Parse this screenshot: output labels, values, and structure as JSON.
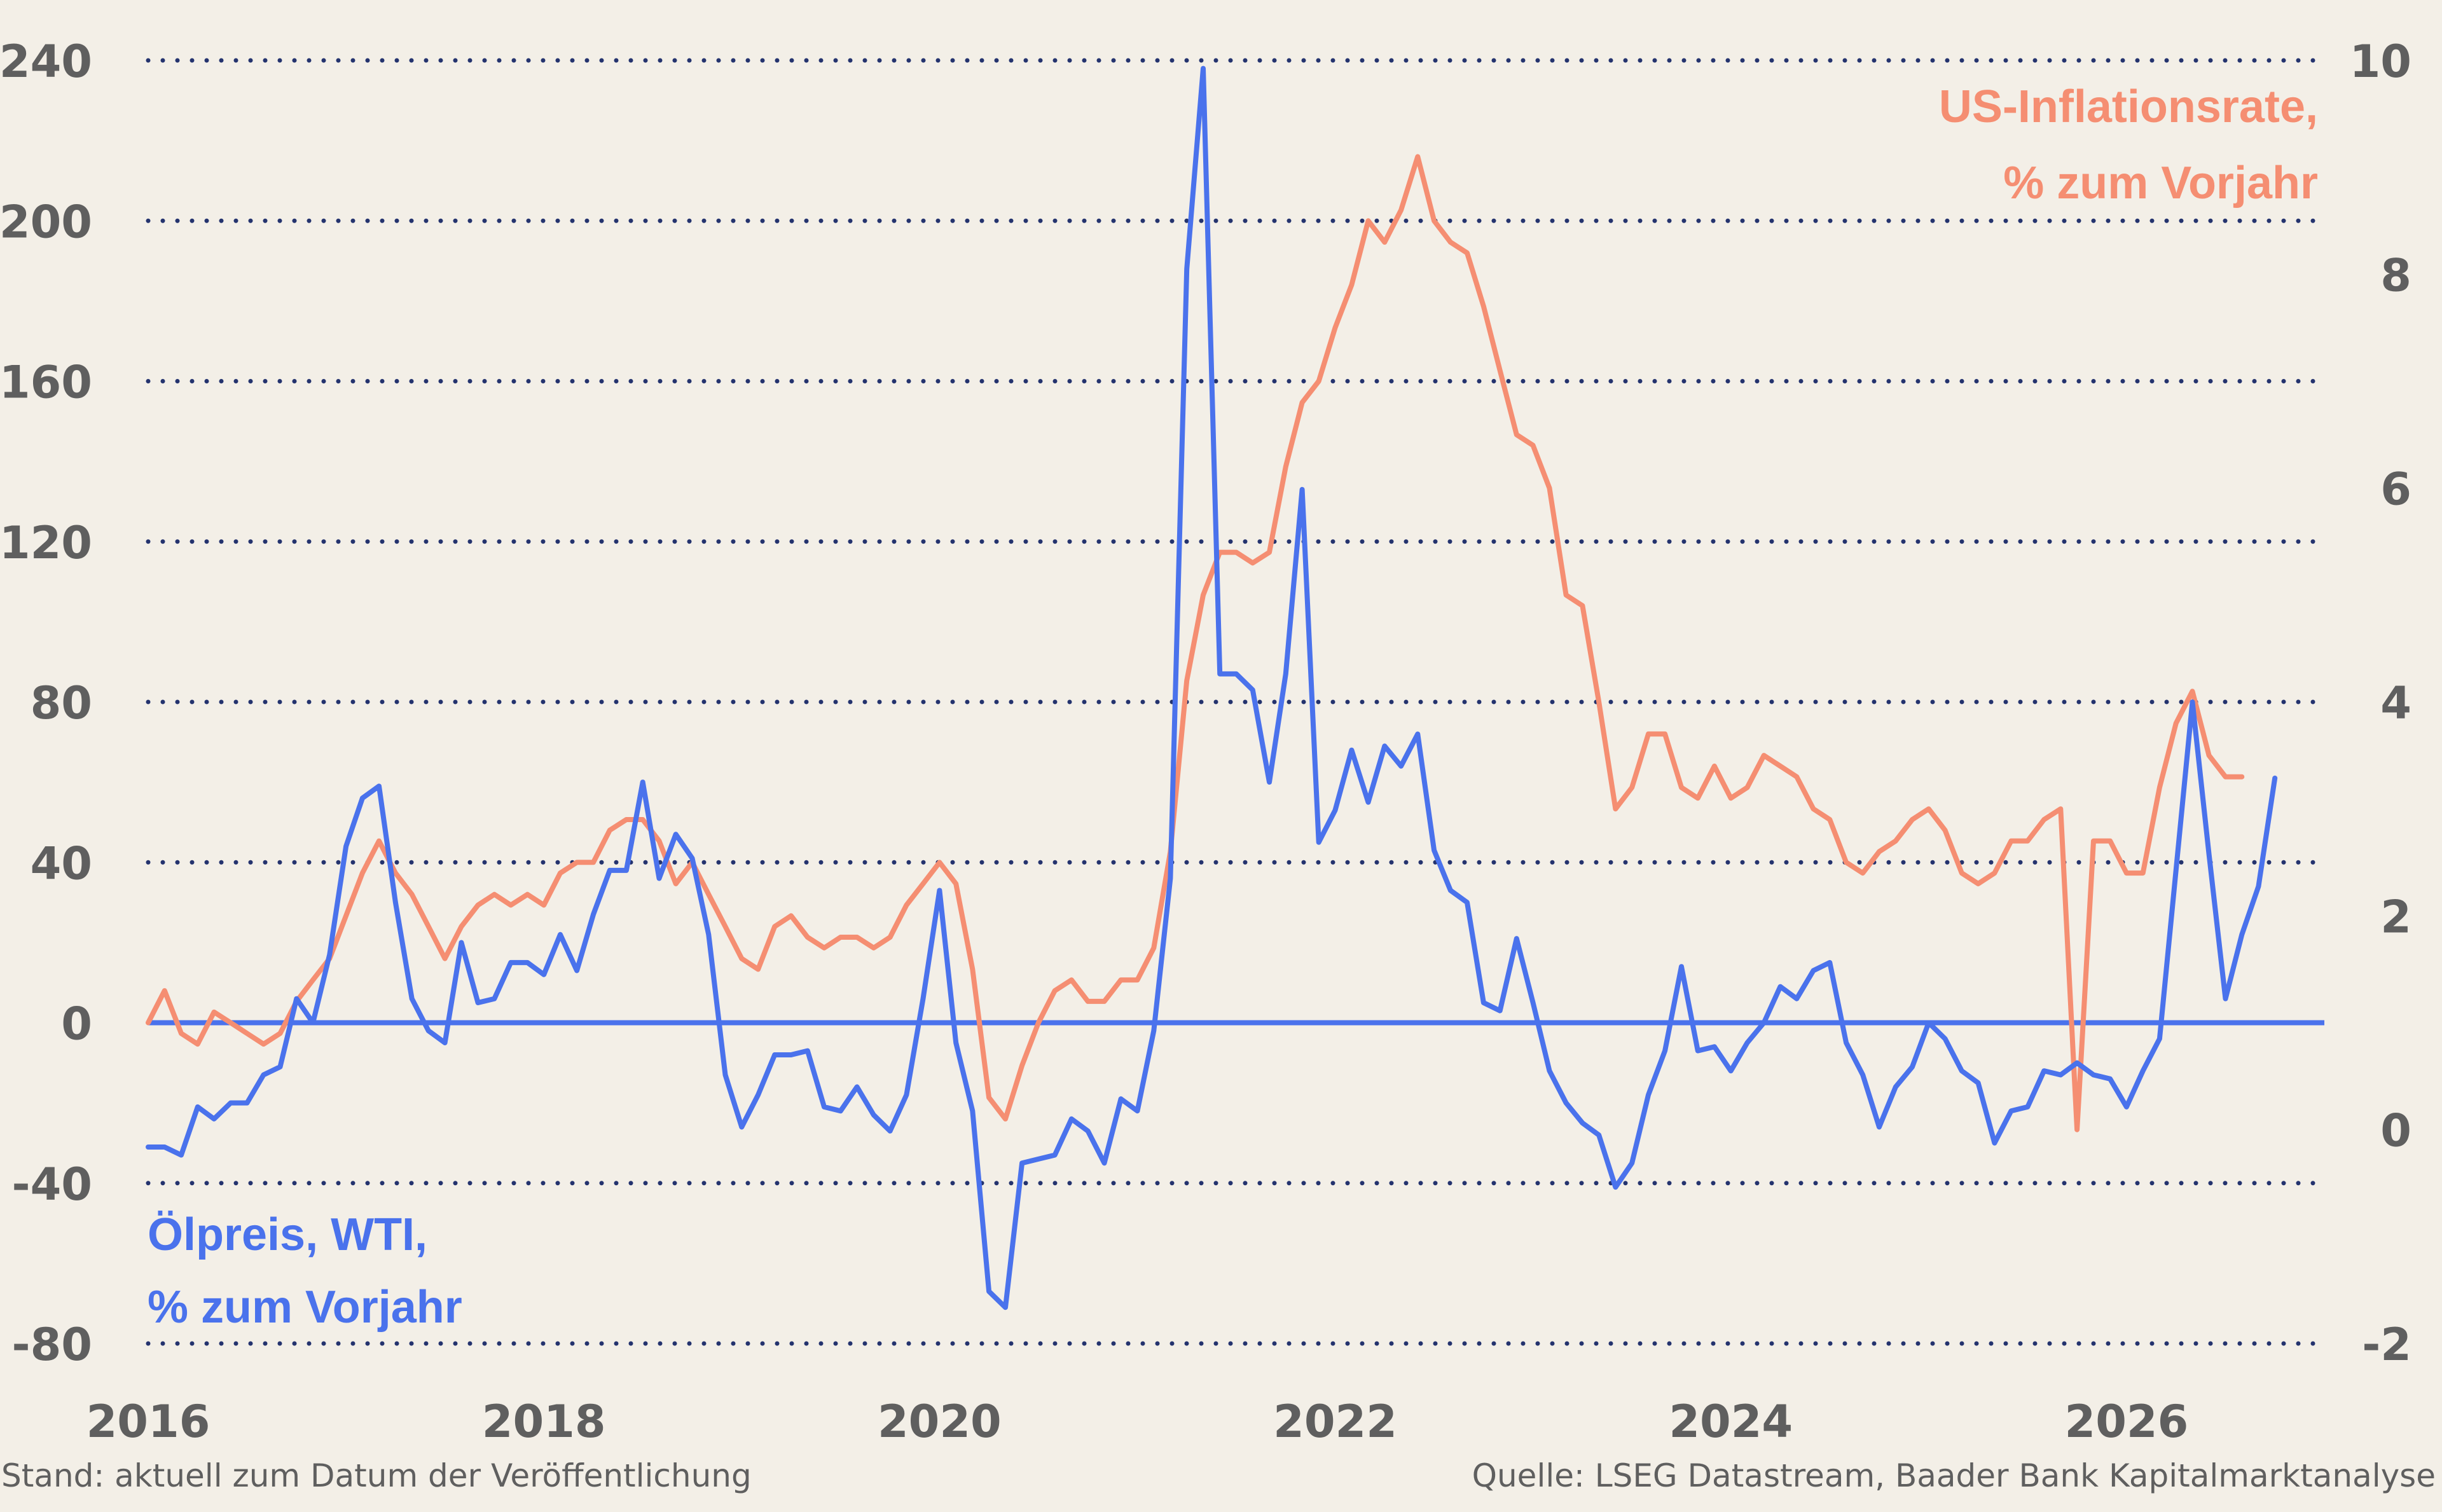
{
  "colors": {
    "background": "#f3efe7",
    "oil": "#4a72ec",
    "inflation": "#f58e72",
    "grid": "#24336e",
    "text": "#5f5f5f"
  },
  "chart_data": {
    "type": "line",
    "left_axis": {
      "ylim": [
        -80,
        240
      ],
      "ticks": [
        "240",
        "200",
        "160",
        "120",
        "80",
        "40",
        "0",
        "-40",
        "-80"
      ]
    },
    "right_axis": {
      "ylim": [
        -2,
        10
      ],
      "ticks": [
        "10",
        "8",
        "6",
        "4",
        "2",
        "0",
        "-2"
      ]
    },
    "x_axis": {
      "xlim": [
        2016,
        2027
      ],
      "ticks": [
        "2016",
        "2018",
        "2020",
        "2022",
        "2024",
        "2026"
      ]
    },
    "grid": "dotted horizontal",
    "series": [
      {
        "name": "Ölpreis, WTI, % zum Vorjahr",
        "axis": "left",
        "points": [
          [
            2016.0,
            -31
          ],
          [
            2016.083,
            -31
          ],
          [
            2016.167,
            -33
          ],
          [
            2016.25,
            -21
          ],
          [
            2016.333,
            -24
          ],
          [
            2016.417,
            -20
          ],
          [
            2016.5,
            -20
          ],
          [
            2016.583,
            -13
          ],
          [
            2016.667,
            -11
          ],
          [
            2016.75,
            6
          ],
          [
            2016.833,
            0
          ],
          [
            2016.917,
            17
          ],
          [
            2017.0,
            44
          ],
          [
            2017.083,
            56
          ],
          [
            2017.167,
            59
          ],
          [
            2017.25,
            30
          ],
          [
            2017.333,
            6
          ],
          [
            2017.417,
            -2
          ],
          [
            2017.5,
            -5
          ],
          [
            2017.583,
            20
          ],
          [
            2017.667,
            5
          ],
          [
            2017.75,
            6
          ],
          [
            2017.833,
            15
          ],
          [
            2017.917,
            15
          ],
          [
            2018.0,
            12
          ],
          [
            2018.083,
            22
          ],
          [
            2018.167,
            13
          ],
          [
            2018.25,
            27
          ],
          [
            2018.333,
            38
          ],
          [
            2018.417,
            38
          ],
          [
            2018.5,
            60
          ],
          [
            2018.583,
            36
          ],
          [
            2018.667,
            47
          ],
          [
            2018.75,
            41
          ],
          [
            2018.833,
            22
          ],
          [
            2018.917,
            -13
          ],
          [
            2019.0,
            -26
          ],
          [
            2019.083,
            -18
          ],
          [
            2019.167,
            -8
          ],
          [
            2019.25,
            -8
          ],
          [
            2019.333,
            -7
          ],
          [
            2019.417,
            -21
          ],
          [
            2019.5,
            -22
          ],
          [
            2019.583,
            -16
          ],
          [
            2019.667,
            -23
          ],
          [
            2019.75,
            -27
          ],
          [
            2019.833,
            -18
          ],
          [
            2019.917,
            6
          ],
          [
            2020.0,
            33
          ],
          [
            2020.083,
            -5
          ],
          [
            2020.167,
            -22
          ],
          [
            2020.25,
            -67
          ],
          [
            2020.333,
            -71
          ],
          [
            2020.417,
            -35
          ],
          [
            2020.5,
            -34
          ],
          [
            2020.583,
            -33
          ],
          [
            2020.667,
            -24
          ],
          [
            2020.75,
            -27
          ],
          [
            2020.833,
            -35
          ],
          [
            2020.917,
            -19
          ],
          [
            2021.0,
            -22
          ],
          [
            2021.083,
            -2
          ],
          [
            2021.167,
            36
          ],
          [
            2021.25,
            188
          ],
          [
            2021.333,
            238
          ],
          [
            2021.417,
            87
          ],
          [
            2021.5,
            87
          ],
          [
            2021.583,
            83
          ],
          [
            2021.667,
            60
          ],
          [
            2021.75,
            87
          ],
          [
            2021.833,
            133
          ],
          [
            2021.917,
            45
          ],
          [
            2022.0,
            53
          ],
          [
            2022.083,
            68
          ],
          [
            2022.167,
            55
          ],
          [
            2022.25,
            69
          ],
          [
            2022.333,
            64
          ],
          [
            2022.417,
            72
          ],
          [
            2022.5,
            43
          ],
          [
            2022.583,
            33
          ],
          [
            2022.667,
            30
          ],
          [
            2022.75,
            5
          ],
          [
            2022.833,
            3
          ],
          [
            2022.917,
            21
          ],
          [
            2023.0,
            5
          ],
          [
            2023.083,
            -12
          ],
          [
            2023.167,
            -20
          ],
          [
            2023.25,
            -25
          ],
          [
            2023.333,
            -28
          ],
          [
            2023.417,
            -41
          ],
          [
            2023.5,
            -35
          ],
          [
            2023.583,
            -18
          ],
          [
            2023.667,
            -7
          ],
          [
            2023.75,
            14
          ],
          [
            2023.833,
            -7
          ],
          [
            2023.917,
            -6
          ],
          [
            2024.0,
            -12
          ],
          [
            2024.083,
            -5
          ],
          [
            2024.167,
            0
          ],
          [
            2024.25,
            9
          ],
          [
            2024.333,
            6
          ],
          [
            2024.417,
            13
          ],
          [
            2024.5,
            15
          ],
          [
            2024.583,
            -5
          ],
          [
            2024.667,
            -13
          ],
          [
            2024.75,
            -26
          ],
          [
            2024.833,
            -16
          ],
          [
            2024.917,
            -11
          ],
          [
            2025.0,
            0
          ],
          [
            2025.083,
            -4
          ],
          [
            2025.167,
            -12
          ],
          [
            2025.25,
            -15
          ],
          [
            2025.333,
            -30
          ],
          [
            2025.417,
            -22
          ],
          [
            2025.5,
            -21
          ],
          [
            2025.583,
            -12
          ],
          [
            2025.667,
            -13
          ],
          [
            2025.75,
            -10
          ],
          [
            2025.833,
            -13
          ],
          [
            2025.917,
            -14
          ],
          [
            2026.0,
            -21
          ],
          [
            2026.083,
            -12
          ],
          [
            2026.167,
            -4
          ],
          [
            2026.25,
            38
          ],
          [
            2026.333,
            80
          ],
          [
            2026.417,
            42
          ],
          [
            2026.5,
            6
          ],
          [
            2026.583,
            22
          ],
          [
            2026.667,
            34
          ],
          [
            2026.75,
            61
          ]
        ]
      },
      {
        "name": "US-Inflationsrate, % zum Vorjahr",
        "axis": "right",
        "points": [
          [
            2016.0,
            1.0
          ],
          [
            2016.083,
            1.3
          ],
          [
            2016.167,
            0.9
          ],
          [
            2016.25,
            0.8
          ],
          [
            2016.333,
            1.1
          ],
          [
            2016.417,
            1.0
          ],
          [
            2016.5,
            0.9
          ],
          [
            2016.583,
            0.8
          ],
          [
            2016.667,
            0.9
          ],
          [
            2016.75,
            1.2
          ],
          [
            2016.833,
            1.4
          ],
          [
            2016.917,
            1.6
          ],
          [
            2017.0,
            2.0
          ],
          [
            2017.083,
            2.4
          ],
          [
            2017.167,
            2.7
          ],
          [
            2017.25,
            2.4
          ],
          [
            2017.333,
            2.2
          ],
          [
            2017.417,
            1.9
          ],
          [
            2017.5,
            1.6
          ],
          [
            2017.583,
            1.9
          ],
          [
            2017.667,
            2.1
          ],
          [
            2017.75,
            2.2
          ],
          [
            2017.833,
            2.1
          ],
          [
            2017.917,
            2.2
          ],
          [
            2018.0,
            2.1
          ],
          [
            2018.083,
            2.4
          ],
          [
            2018.167,
            2.5
          ],
          [
            2018.25,
            2.5
          ],
          [
            2018.333,
            2.8
          ],
          [
            2018.417,
            2.9
          ],
          [
            2018.5,
            2.9
          ],
          [
            2018.583,
            2.7
          ],
          [
            2018.667,
            2.3
          ],
          [
            2018.75,
            2.5
          ],
          [
            2018.833,
            2.2
          ],
          [
            2018.917,
            1.9
          ],
          [
            2019.0,
            1.6
          ],
          [
            2019.083,
            1.5
          ],
          [
            2019.167,
            1.9
          ],
          [
            2019.25,
            2.0
          ],
          [
            2019.333,
            1.8
          ],
          [
            2019.417,
            1.7
          ],
          [
            2019.5,
            1.8
          ],
          [
            2019.583,
            1.8
          ],
          [
            2019.667,
            1.7
          ],
          [
            2019.75,
            1.8
          ],
          [
            2019.833,
            2.1
          ],
          [
            2019.917,
            2.3
          ],
          [
            2020.0,
            2.5
          ],
          [
            2020.083,
            2.3
          ],
          [
            2020.167,
            1.5
          ],
          [
            2020.25,
            0.3
          ],
          [
            2020.333,
            0.1
          ],
          [
            2020.417,
            0.6
          ],
          [
            2020.5,
            1.0
          ],
          [
            2020.583,
            1.3
          ],
          [
            2020.667,
            1.4
          ],
          [
            2020.75,
            1.2
          ],
          [
            2020.833,
            1.2
          ],
          [
            2020.917,
            1.4
          ],
          [
            2021.0,
            1.4
          ],
          [
            2021.083,
            1.7
          ],
          [
            2021.167,
            2.6
          ],
          [
            2021.25,
            4.2
          ],
          [
            2021.333,
            5.0
          ],
          [
            2021.417,
            5.4
          ],
          [
            2021.5,
            5.4
          ],
          [
            2021.583,
            5.3
          ],
          [
            2021.667,
            5.4
          ],
          [
            2021.75,
            6.2
          ],
          [
            2021.833,
            6.8
          ],
          [
            2021.917,
            7.0
          ],
          [
            2022.0,
            7.5
          ],
          [
            2022.083,
            7.9
          ],
          [
            2022.167,
            8.5
          ],
          [
            2022.25,
            8.3
          ],
          [
            2022.333,
            8.6
          ],
          [
            2022.417,
            9.1
          ],
          [
            2022.5,
            8.5
          ],
          [
            2022.583,
            8.3
          ],
          [
            2022.667,
            8.2
          ],
          [
            2022.75,
            7.7
          ],
          [
            2022.833,
            7.1
          ],
          [
            2022.917,
            6.5
          ],
          [
            2023.0,
            6.4
          ],
          [
            2023.083,
            6.0
          ],
          [
            2023.167,
            5.0
          ],
          [
            2023.25,
            4.9
          ],
          [
            2023.333,
            4.0
          ],
          [
            2023.417,
            3.0
          ],
          [
            2023.5,
            3.2
          ],
          [
            2023.583,
            3.7
          ],
          [
            2023.667,
            3.7
          ],
          [
            2023.75,
            3.2
          ],
          [
            2023.833,
            3.1
          ],
          [
            2023.917,
            3.4
          ],
          [
            2024.0,
            3.1
          ],
          [
            2024.083,
            3.2
          ],
          [
            2024.167,
            3.5
          ],
          [
            2024.25,
            3.4
          ],
          [
            2024.333,
            3.3
          ],
          [
            2024.417,
            3.0
          ],
          [
            2024.5,
            2.9
          ],
          [
            2024.583,
            2.5
          ],
          [
            2024.667,
            2.4
          ],
          [
            2024.75,
            2.6
          ],
          [
            2024.833,
            2.7
          ],
          [
            2024.917,
            2.9
          ],
          [
            2025.0,
            3.0
          ],
          [
            2025.083,
            2.8
          ],
          [
            2025.167,
            2.4
          ],
          [
            2025.25,
            2.3
          ],
          [
            2025.333,
            2.4
          ],
          [
            2025.417,
            2.7
          ],
          [
            2025.5,
            2.7
          ],
          [
            2025.583,
            2.9
          ],
          [
            2025.667,
            3.0
          ],
          [
            2025.75,
            0.0
          ],
          [
            2025.833,
            2.7
          ],
          [
            2025.917,
            2.7
          ],
          [
            2026.0,
            2.4
          ],
          [
            2026.083,
            2.4
          ],
          [
            2026.167,
            3.2
          ],
          [
            2026.25,
            3.8
          ],
          [
            2026.333,
            4.1
          ],
          [
            2026.417,
            3.5
          ],
          [
            2026.5,
            3.3
          ],
          [
            2026.583,
            3.3
          ]
        ]
      }
    ]
  },
  "labels": {
    "oil_line1": "Ölpreis, WTI,",
    "oil_line2": "% zum Vorjahr",
    "infl_line1": "US-Inflationsrate,",
    "infl_line2": "% zum Vorjahr"
  },
  "footer": {
    "left": "Stand: aktuell zum Datum der Veröffentlichung",
    "right": "Quelle: LSEG Datastream, Baader Bank Kapitalmarktanalyse"
  }
}
